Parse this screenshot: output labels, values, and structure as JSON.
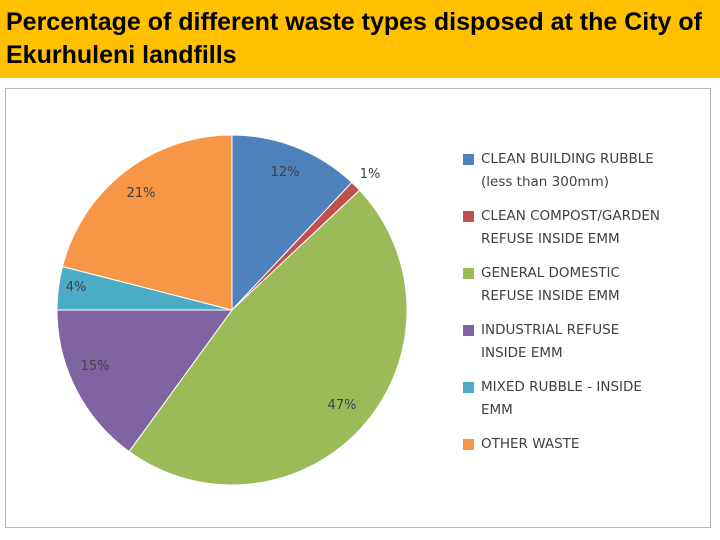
{
  "title": "Percentage of different waste types disposed at the City of Ekurhuleni landfills",
  "colors": {
    "title_background": "#ffc000"
  },
  "chart_data": {
    "type": "pie",
    "title": "Percentage of different waste types disposed at the City of Ekurhuleni landfills",
    "legend_position": "right",
    "slices": [
      {
        "label": [
          "CLEAN BUILDING RUBBLE",
          "(less than 300mm)"
        ],
        "value": 12,
        "value_label": "12%",
        "color": "#4f81bd"
      },
      {
        "label": [
          "CLEAN COMPOST/GARDEN",
          "REFUSE INSIDE EMM"
        ],
        "value": 1,
        "value_label": "1%",
        "color": "#c0504d"
      },
      {
        "label": [
          "GENERAL DOMESTIC",
          "REFUSE INSIDE EMM"
        ],
        "value": 47,
        "value_label": "47%",
        "color": "#9bbb59"
      },
      {
        "label": [
          "INDUSTRIAL REFUSE",
          "INSIDE EMM"
        ],
        "value": 15,
        "value_label": "15%",
        "color": "#8064a2"
      },
      {
        "label": [
          "MIXED RUBBLE - INSIDE",
          "EMM"
        ],
        "value": 4,
        "value_label": "4%",
        "color": "#4bacc6"
      },
      {
        "label": [
          "OTHER WASTE"
        ],
        "value": 21,
        "value_label": "21%",
        "color": "#f79646"
      }
    ]
  }
}
